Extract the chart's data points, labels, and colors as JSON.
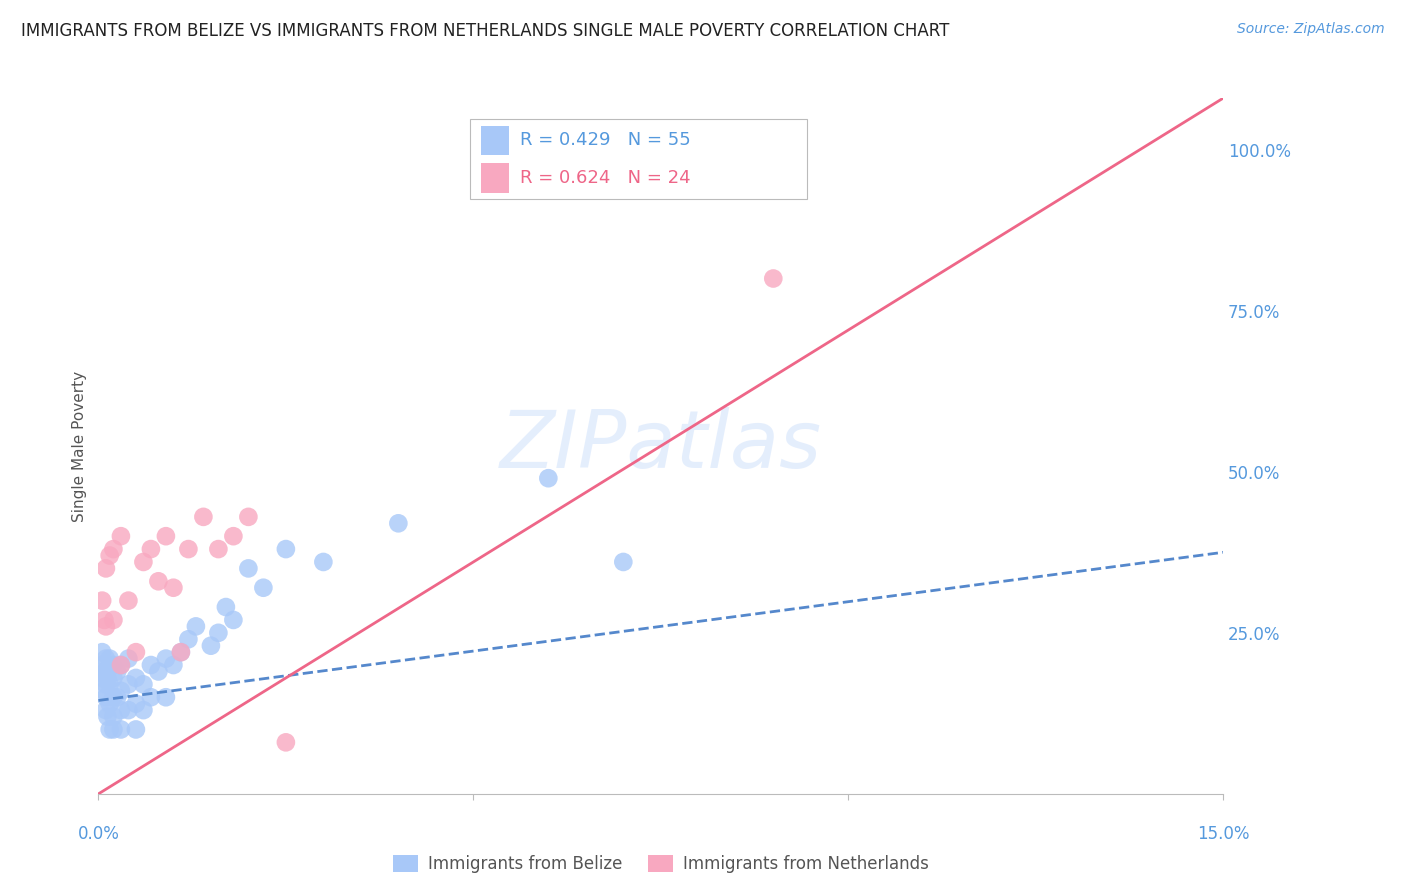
{
  "title": "IMMIGRANTS FROM BELIZE VS IMMIGRANTS FROM NETHERLANDS SINGLE MALE POVERTY CORRELATION CHART",
  "source": "Source: ZipAtlas.com",
  "ylabel": "Single Male Poverty",
  "ytick_labels": [
    "100.0%",
    "75.0%",
    "50.0%",
    "25.0%"
  ],
  "ytick_values": [
    1.0,
    0.75,
    0.5,
    0.25
  ],
  "x_min": 0.0,
  "x_max": 0.15,
  "y_min": 0.0,
  "y_max": 1.08,
  "belize_R": 0.429,
  "belize_N": 55,
  "netherlands_R": 0.624,
  "netherlands_N": 24,
  "belize_color": "#a8c8f8",
  "netherlands_color": "#f8a8c0",
  "belize_line_color": "#5588cc",
  "netherlands_line_color": "#ee6688",
  "grid_color": "#dddddd",
  "text_color": "#5599dd",
  "title_color": "#222222",
  "belize_x": [
    0.0005,
    0.0005,
    0.0005,
    0.0008,
    0.0008,
    0.001,
    0.001,
    0.001,
    0.001,
    0.001,
    0.0012,
    0.0012,
    0.0015,
    0.0015,
    0.0015,
    0.0015,
    0.002,
    0.002,
    0.002,
    0.002,
    0.002,
    0.0025,
    0.0025,
    0.003,
    0.003,
    0.003,
    0.003,
    0.004,
    0.004,
    0.004,
    0.005,
    0.005,
    0.005,
    0.006,
    0.006,
    0.007,
    0.007,
    0.008,
    0.009,
    0.009,
    0.01,
    0.011,
    0.012,
    0.013,
    0.015,
    0.016,
    0.017,
    0.018,
    0.02,
    0.022,
    0.025,
    0.03,
    0.04,
    0.06,
    0.07
  ],
  "belize_y": [
    0.18,
    0.2,
    0.22,
    0.16,
    0.19,
    0.13,
    0.15,
    0.17,
    0.19,
    0.21,
    0.12,
    0.18,
    0.1,
    0.14,
    0.17,
    0.21,
    0.1,
    0.12,
    0.15,
    0.18,
    0.2,
    0.15,
    0.19,
    0.1,
    0.13,
    0.16,
    0.2,
    0.13,
    0.17,
    0.21,
    0.1,
    0.14,
    0.18,
    0.13,
    0.17,
    0.15,
    0.2,
    0.19,
    0.15,
    0.21,
    0.2,
    0.22,
    0.24,
    0.26,
    0.23,
    0.25,
    0.29,
    0.27,
    0.35,
    0.32,
    0.38,
    0.36,
    0.42,
    0.49,
    0.36
  ],
  "netherlands_x": [
    0.0005,
    0.0008,
    0.001,
    0.001,
    0.0015,
    0.002,
    0.002,
    0.003,
    0.003,
    0.004,
    0.005,
    0.006,
    0.007,
    0.008,
    0.009,
    0.01,
    0.011,
    0.012,
    0.014,
    0.016,
    0.018,
    0.02,
    0.025,
    0.09
  ],
  "netherlands_y": [
    0.3,
    0.27,
    0.26,
    0.35,
    0.37,
    0.27,
    0.38,
    0.2,
    0.4,
    0.3,
    0.22,
    0.36,
    0.38,
    0.33,
    0.4,
    0.32,
    0.22,
    0.38,
    0.43,
    0.38,
    0.4,
    0.43,
    0.08,
    0.8
  ],
  "belize_line_x0": 0.0,
  "belize_line_x1": 0.15,
  "belize_line_y0": 0.145,
  "belize_line_y1": 0.375,
  "netherlands_line_x0": 0.0,
  "netherlands_line_x1": 0.15,
  "netherlands_line_y0": 0.0,
  "netherlands_line_y1": 1.08,
  "watermark_text": "ZIPatlas",
  "legend_belize_label": "Immigrants from Belize",
  "legend_netherlands_label": "Immigrants from Netherlands"
}
